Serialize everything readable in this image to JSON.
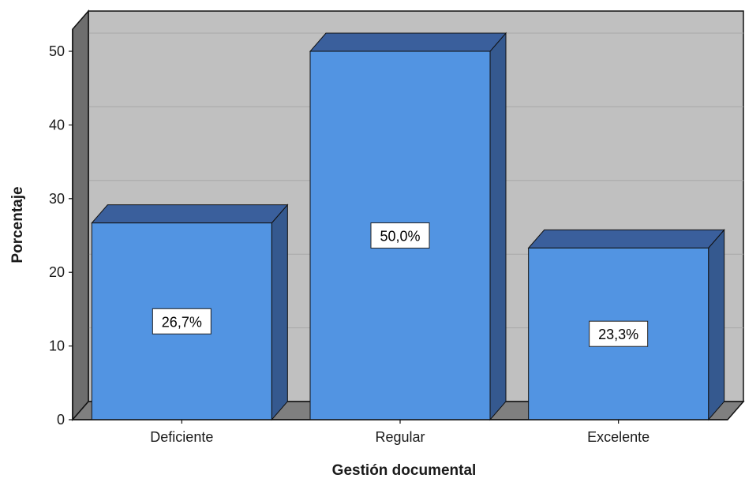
{
  "chart_data": {
    "type": "bar",
    "categories": [
      "Deficiente",
      "Regular",
      "Excelente"
    ],
    "values": [
      26.7,
      50.0,
      23.3
    ],
    "data_labels": [
      "26,7%",
      "50,0%",
      "23,3%"
    ],
    "xlabel": "Gestión documental",
    "ylabel": "Porcentaje",
    "ylim": [
      0,
      53
    ],
    "yticks": [
      0,
      10,
      20,
      30,
      40,
      50
    ],
    "grid": true,
    "style_3d": true,
    "colors": {
      "bar_front": "#5294e2",
      "bar_top": "#3a5f9c",
      "bar_side": "#35598f",
      "bar_outline": "#111111",
      "plot_back": "#c0c0c0",
      "plot_left_wall": "#6e6e6e",
      "plot_floor": "#7f7f7f",
      "gridline": "#a8a8a8"
    }
  }
}
